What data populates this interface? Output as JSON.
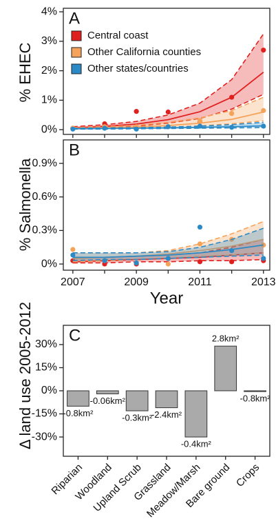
{
  "chart_data": [
    {
      "type": "line",
      "label": "A",
      "y_label": "% EHEC",
      "x": [
        2007,
        2008,
        2009,
        2010,
        2011,
        2012,
        2013
      ],
      "xlim": [
        2006.7,
        2013.2
      ],
      "ylim": [
        -0.16,
        4.12
      ],
      "yticks": [
        {
          "value": 0,
          "label": "0%"
        },
        {
          "value": 1,
          "label": "1%"
        },
        {
          "value": 2,
          "label": "2%"
        },
        {
          "value": 3,
          "label": "3%"
        },
        {
          "value": 4,
          "label": "4%"
        }
      ],
      "legend": "top-left",
      "series": [
        {
          "name": "Central coast",
          "color": "#e0201f",
          "points": [
            0.05,
            0.2,
            0.62,
            0.6,
            0.27,
            1.1,
            2.7
          ],
          "fit": [
            0.06,
            0.11,
            0.19,
            0.34,
            0.61,
            1.1,
            1.95
          ],
          "upper": [
            0.1,
            0.17,
            0.28,
            0.5,
            0.9,
            1.7,
            3.25
          ],
          "lower": [
            0.03,
            0.06,
            0.12,
            0.22,
            0.38,
            0.7,
            1.2
          ]
        },
        {
          "name": "Other California counties",
          "color": "#f5a35a",
          "points": [
            0.05,
            0.1,
            0.1,
            0.1,
            0.3,
            0.55,
            0.65
          ],
          "fit": [
            0.04,
            0.06,
            0.09,
            0.14,
            0.22,
            0.35,
            0.6
          ],
          "upper": [
            0.07,
            0.1,
            0.15,
            0.25,
            0.4,
            0.65,
            1.1
          ],
          "lower": [
            0.02,
            0.03,
            0.05,
            0.08,
            0.13,
            0.2,
            0.3
          ]
        },
        {
          "name": "Other states/countries",
          "color": "#2b8ac6",
          "points": [
            0.02,
            0.05,
            0.02,
            0.1,
            0.12,
            0.08,
            0.12
          ],
          "fit": [
            0.03,
            0.04,
            0.05,
            0.06,
            0.08,
            0.1,
            0.13
          ],
          "upper": [
            0.05,
            0.06,
            0.07,
            0.09,
            0.12,
            0.17,
            0.25
          ],
          "lower": [
            0.02,
            0.02,
            0.03,
            0.04,
            0.05,
            0.06,
            0.07
          ]
        }
      ]
    },
    {
      "type": "line",
      "label": "B",
      "y_label": "% Salmonella",
      "x_label": "Year",
      "x": [
        2007,
        2008,
        2009,
        2010,
        2011,
        2012,
        2013
      ],
      "xlim": [
        2006.7,
        2013.2
      ],
      "xticks": [
        2007,
        2009,
        2011,
        2013
      ],
      "ylim": [
        -0.055,
        1.11
      ],
      "yticks": [
        {
          "value": 0,
          "label": "0%"
        },
        {
          "value": 0.3,
          "label": "0.3%"
        },
        {
          "value": 0.6,
          "label": "0.6%"
        },
        {
          "value": 0.9,
          "label": "0.9%"
        }
      ],
      "series": [
        {
          "color": "#e0201f",
          "points": [
            0.03,
            0.0,
            0.0,
            0.05,
            0.02,
            0.02,
            0.03
          ],
          "fit": [
            0.02,
            0.03,
            0.04,
            0.05,
            0.06,
            0.08,
            0.1
          ],
          "upper": [
            0.05,
            0.06,
            0.07,
            0.08,
            0.1,
            0.15,
            0.22
          ],
          "lower": [
            0.01,
            0.01,
            0.02,
            0.02,
            0.03,
            0.03,
            0.04
          ]
        },
        {
          "color": "#f5a35a",
          "points": [
            0.13,
            0.03,
            0.01,
            0.0,
            0.18,
            0.22,
            0.17
          ],
          "fit": [
            0.05,
            0.06,
            0.07,
            0.09,
            0.12,
            0.16,
            0.22
          ],
          "upper": [
            0.1,
            0.1,
            0.1,
            0.12,
            0.18,
            0.27,
            0.38
          ],
          "lower": [
            0.02,
            0.03,
            0.04,
            0.05,
            0.07,
            0.08,
            0.1
          ]
        },
        {
          "color": "#2b8ac6",
          "points": [
            0.08,
            0.03,
            0.01,
            0.05,
            0.33,
            0.12,
            0.05
          ],
          "fit": [
            0.06,
            0.06,
            0.07,
            0.08,
            0.1,
            0.13,
            0.17
          ],
          "upper": [
            0.1,
            0.1,
            0.1,
            0.11,
            0.15,
            0.22,
            0.32
          ],
          "lower": [
            0.03,
            0.04,
            0.04,
            0.05,
            0.06,
            0.07,
            0.08
          ]
        }
      ]
    },
    {
      "type": "bar",
      "label": "C",
      "y_label": "Δ land use 2005-2012",
      "categories": [
        "Riparian",
        "Woodland",
        "Upland Scrub",
        "Grassland",
        "Meadow/Marsh",
        "Bare ground",
        "Crops"
      ],
      "values": [
        -10,
        -2,
        -13,
        -11,
        -30,
        29,
        -0.5
      ],
      "annotations": [
        "-0.8km²",
        "-0.06km²",
        "-0.3km²",
        "-2.4km²",
        "-0.4km²",
        "2.8km²",
        "-0.8km²"
      ],
      "color": "#aaaaaa",
      "ylim": [
        -42.5,
        42.5
      ],
      "yticks": [
        {
          "value": 30,
          "label": "30%"
        },
        {
          "value": 15,
          "label": "15%"
        },
        {
          "value": 0,
          "label": "0%"
        },
        {
          "value": -15,
          "label": "-15%"
        },
        {
          "value": -30,
          "label": "-30%"
        }
      ]
    }
  ]
}
